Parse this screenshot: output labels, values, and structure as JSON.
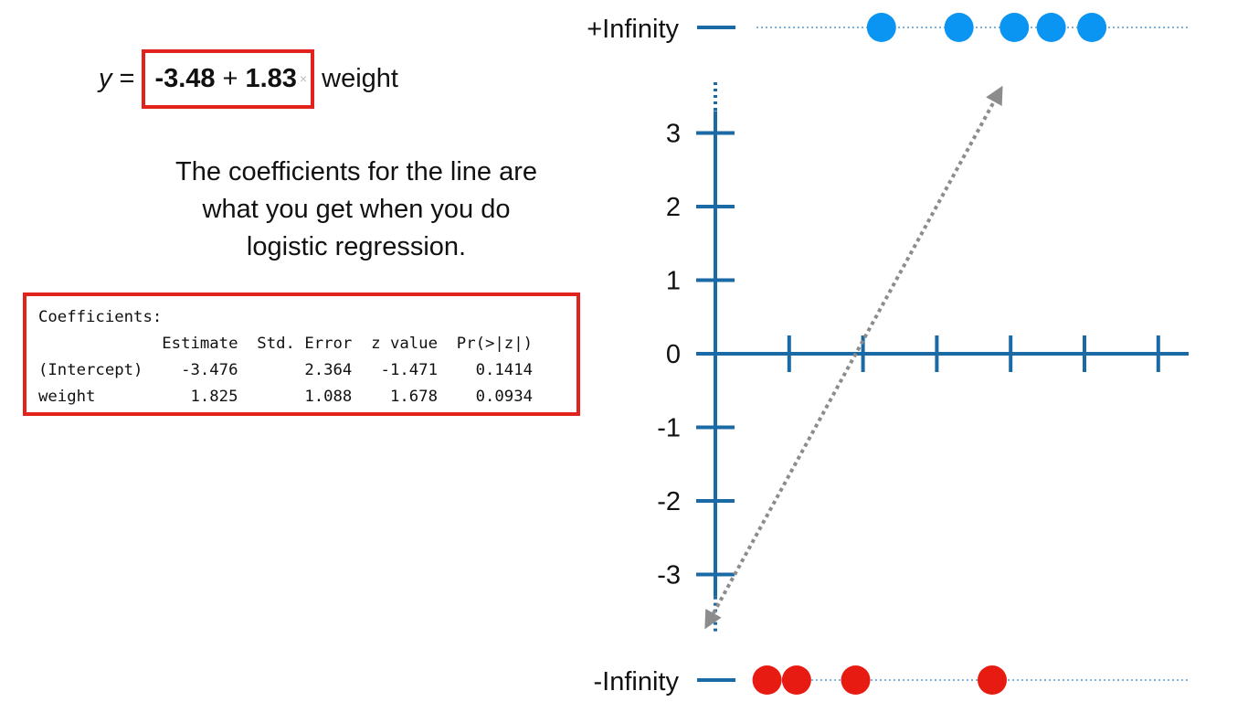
{
  "equation": {
    "y": "y",
    "equals": "=",
    "intercept": "-3.48",
    "plus": "+",
    "slope": "1.83",
    "times": "×",
    "variable": "weight"
  },
  "caption": {
    "lines": [
      "The coefficients for the line are",
      "what you get when you do",
      "logistic regression."
    ]
  },
  "coefficients": {
    "title": "Coefficients:",
    "header": [
      "Estimate",
      "Std. Error",
      "z value",
      "Pr(>|z|)"
    ],
    "rows": [
      {
        "name": "(Intercept)",
        "estimate": "-3.476",
        "std_error": "2.364",
        "z_value": "-1.471",
        "p_value": "0.1414"
      },
      {
        "name": "weight",
        "estimate": "1.825",
        "std_error": "1.088",
        "z_value": "1.678",
        "p_value": "0.0934"
      }
    ]
  },
  "chart_data": {
    "type": "scatter",
    "title": "",
    "xlabel": "",
    "ylabel": "",
    "y_ticks": [
      "3",
      "2",
      "1",
      "0",
      "-1",
      "-2",
      "-3"
    ],
    "y_tick_values": [
      3,
      2,
      1,
      0,
      -1,
      -2,
      -3
    ],
    "x_ticks": [
      0,
      1,
      2,
      3,
      4,
      5,
      6
    ],
    "xlim": [
      -0.5,
      6.5
    ],
    "ylim": [
      -3.6,
      3.6
    ],
    "top_label": "+Infinity",
    "bottom_label": "-Infinity",
    "line": {
      "intercept": -3.48,
      "slope": 1.83,
      "style": "dotted-gray-with-arrows"
    },
    "series": [
      {
        "position": "+Infinity",
        "color": "#0b95f2",
        "x": [
          2.25,
          3.3,
          4.05,
          4.55,
          5.1
        ]
      },
      {
        "position": "-Infinity",
        "color": "#e81b12",
        "x": [
          0.7,
          1.1,
          1.9,
          3.75
        ]
      }
    ],
    "axis_color": "#1a6aa6",
    "grid": false
  }
}
